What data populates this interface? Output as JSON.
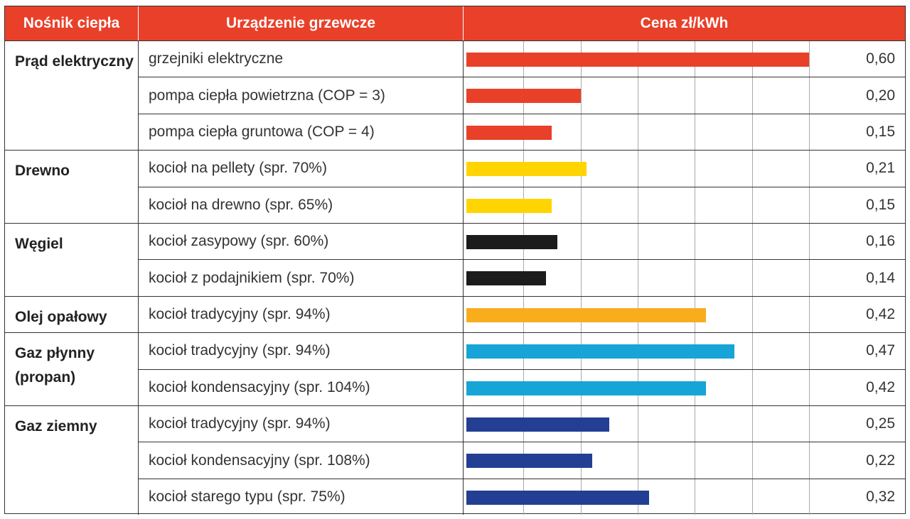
{
  "chart_data": {
    "type": "bar",
    "orientation": "horizontal",
    "headers": {
      "carrier": "Nośnik ciepła",
      "device": "Urządzenie grzewcze",
      "price": "Cena zł/kWh"
    },
    "xlim": [
      0,
      0.6
    ],
    "grid": true,
    "groups": [
      {
        "carrier": "Prąd elektryczny",
        "color": "#e9402a",
        "rows": [
          {
            "device": "grzejniki elektryczne",
            "value": 0.6,
            "label": "0,60"
          },
          {
            "device": "pompa ciepła powietrzna (COP = 3)",
            "value": 0.2,
            "label": "0,20"
          },
          {
            "device": "pompa ciepła gruntowa (COP = 4)",
            "value": 0.15,
            "label": "0,15"
          }
        ]
      },
      {
        "carrier": "Drewno",
        "color": "#ffd400",
        "rows": [
          {
            "device": "kocioł na pellety (spr. 70%)",
            "value": 0.21,
            "label": "0,21"
          },
          {
            "device": "kocioł na drewno (spr. 65%)",
            "value": 0.15,
            "label": "0,15"
          }
        ]
      },
      {
        "carrier": "Węgiel",
        "color": "#1c1c1c",
        "rows": [
          {
            "device": "kocioł zasypowy (spr. 60%)",
            "value": 0.16,
            "label": "0,16"
          },
          {
            "device": "kocioł z podajnikiem (spr. 70%)",
            "value": 0.14,
            "label": "0,14"
          }
        ]
      },
      {
        "carrier": "Olej opałowy",
        "color": "#f8ad1c",
        "rows": [
          {
            "device": "kocioł tradycyjny (spr. 94%)",
            "value": 0.42,
            "label": "0,42"
          }
        ]
      },
      {
        "carrier": "Gaz płynny (propan)",
        "color": "#17a4d6",
        "rows": [
          {
            "device": "kocioł tradycyjny (spr. 94%)",
            "value": 0.47,
            "label": "0,47"
          },
          {
            "device": "kocioł kondensacyjny (spr. 104%)",
            "value": 0.42,
            "label": "0,42"
          }
        ]
      },
      {
        "carrier": "Gaz ziemny",
        "color": "#233f93",
        "rows": [
          {
            "device": "kocioł tradycyjny (spr. 94%)",
            "value": 0.25,
            "label": "0,25"
          },
          {
            "device": "kocioł kondensacyjny (spr. 108%)",
            "value": 0.22,
            "label": "0,22"
          },
          {
            "device": "kocioł starego typu (spr. 75%)",
            "value": 0.32,
            "label": "0,32"
          }
        ]
      }
    ]
  }
}
